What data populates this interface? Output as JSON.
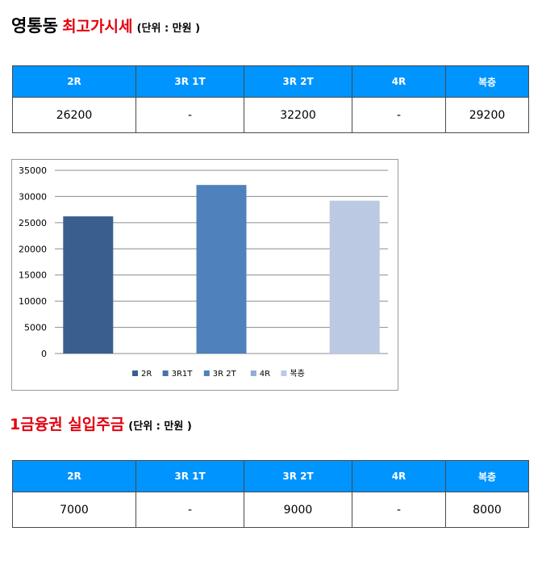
{
  "section1": {
    "title": "영통동",
    "subtitle": "최고가시세",
    "unit": "(단위 : 만원 )",
    "headers": [
      "2R",
      "3R 1T",
      "3R 2T",
      "4R",
      "복층"
    ],
    "values": [
      "26200",
      "-",
      "32200",
      "-",
      "29200"
    ]
  },
  "chart_data": {
    "type": "bar",
    "categories": [
      "2R",
      "3R1T",
      "3R 2T",
      "4R",
      "복층"
    ],
    "values": [
      26200,
      null,
      32200,
      null,
      29200
    ],
    "colors": [
      "#3a5f8f",
      "#4673b0",
      "#4f81bd",
      "#94abd1",
      "#bcc9e2"
    ],
    "yticks": [
      0,
      5000,
      10000,
      15000,
      20000,
      25000,
      30000,
      35000
    ],
    "ylim": [
      0,
      35000
    ],
    "grid": true,
    "legend_position": "bottom"
  },
  "section2": {
    "title": "1금융권 실입주금",
    "unit": "(단위 : 만원 )",
    "headers": [
      "2R",
      "3R 1T",
      "3R 2T",
      "4R",
      "복층"
    ],
    "values": [
      "7000",
      "-",
      "9000",
      "-",
      "8000"
    ]
  }
}
